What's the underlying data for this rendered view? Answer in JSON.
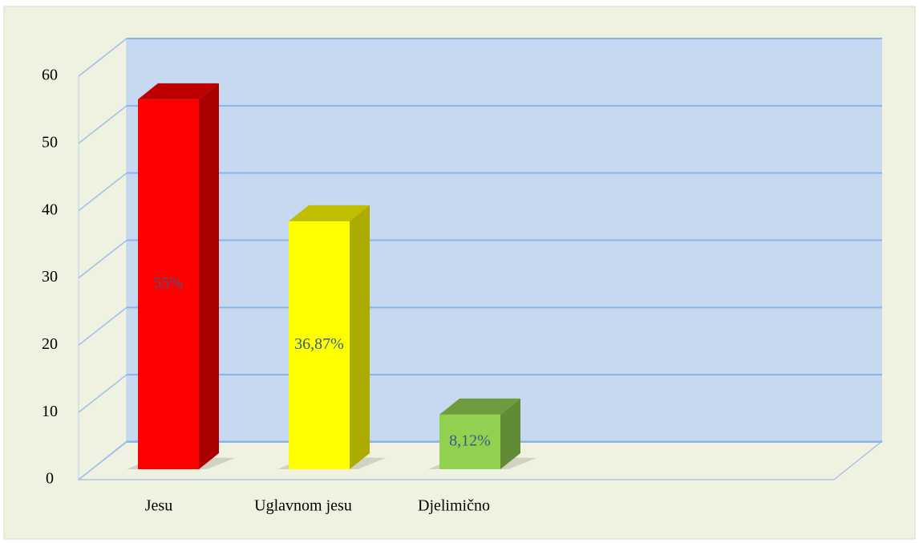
{
  "chart_data": {
    "type": "bar",
    "categories": [
      "Jesu",
      "Uglavnom jesu",
      "Djelimično"
    ],
    "values": [
      55,
      36.87,
      8.12
    ],
    "value_labels": [
      "55%",
      "36,87%",
      "8,12%"
    ],
    "colors": [
      "#ff0000",
      "#ffff00",
      "#92d050"
    ],
    "ylim": [
      0,
      60
    ],
    "yticks": [
      0,
      10,
      20,
      30,
      40,
      50,
      60
    ],
    "grid": true
  }
}
